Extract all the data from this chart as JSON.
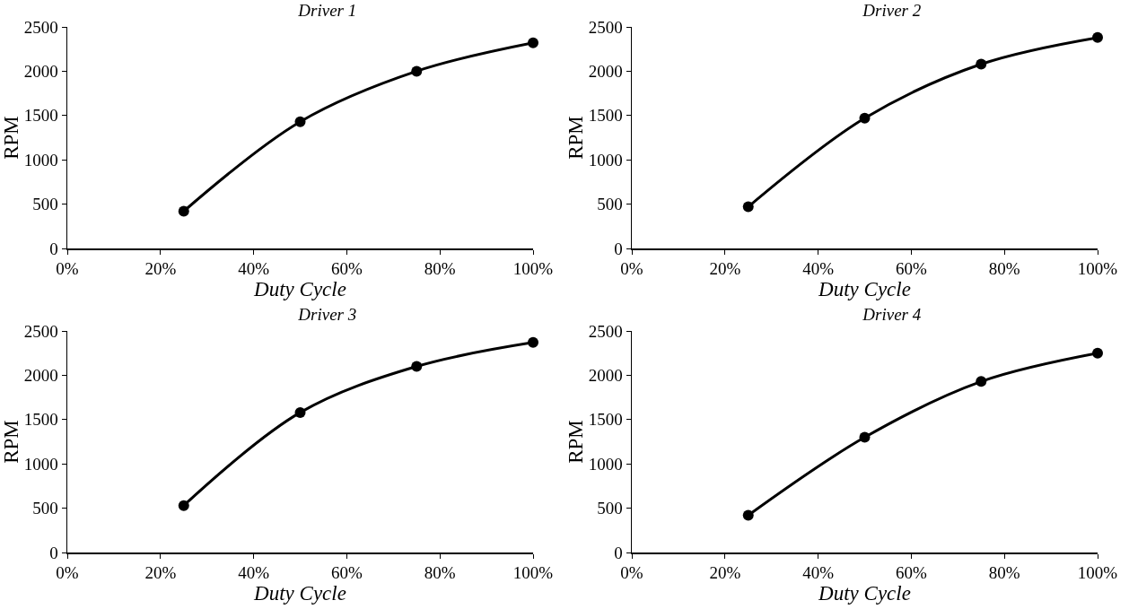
{
  "chart_data": [
    {
      "type": "line",
      "title": "Driver 1",
      "xlabel": "Duty Cycle",
      "ylabel": "RPM",
      "x": [
        25,
        50,
        75,
        100
      ],
      "series": [
        {
          "color": "#000000",
          "values": [
            420,
            1430,
            2000,
            2320
          ]
        }
      ],
      "xlim": [
        0,
        100
      ],
      "xticks": [
        {
          "value": 0,
          "label": "0%"
        },
        {
          "value": 20,
          "label": "20%"
        },
        {
          "value": 40,
          "label": "40%"
        },
        {
          "value": 60,
          "label": "60%"
        },
        {
          "value": 80,
          "label": "80%"
        },
        {
          "value": 100,
          "label": "100%"
        }
      ],
      "ylim": [
        0,
        2500
      ],
      "yticks": [
        0,
        500,
        1000,
        1500,
        2000,
        2500
      ],
      "grid": false,
      "marker": "circle",
      "line_style": "solid"
    },
    {
      "type": "line",
      "title": "Driver 2",
      "xlabel": "Duty Cycle",
      "ylabel": "RPM",
      "x": [
        25,
        50,
        75,
        100
      ],
      "series": [
        {
          "color": "#000000",
          "values": [
            470,
            1470,
            2080,
            2380
          ]
        }
      ],
      "xlim": [
        0,
        100
      ],
      "xticks": [
        {
          "value": 0,
          "label": "0%"
        },
        {
          "value": 20,
          "label": "20%"
        },
        {
          "value": 40,
          "label": "40%"
        },
        {
          "value": 60,
          "label": "60%"
        },
        {
          "value": 80,
          "label": "80%"
        },
        {
          "value": 100,
          "label": "100%"
        }
      ],
      "ylim": [
        0,
        2500
      ],
      "yticks": [
        0,
        500,
        1000,
        1500,
        2000,
        2500
      ],
      "grid": false,
      "marker": "circle",
      "line_style": "solid"
    },
    {
      "type": "line",
      "title": "Driver 3",
      "xlabel": "Duty Cycle",
      "ylabel": "RPM",
      "x": [
        25,
        50,
        75,
        100
      ],
      "series": [
        {
          "color": "#000000",
          "values": [
            530,
            1580,
            2100,
            2370
          ]
        }
      ],
      "xlim": [
        0,
        100
      ],
      "xticks": [
        {
          "value": 0,
          "label": "0%"
        },
        {
          "value": 20,
          "label": "20%"
        },
        {
          "value": 40,
          "label": "40%"
        },
        {
          "value": 60,
          "label": "60%"
        },
        {
          "value": 80,
          "label": "80%"
        },
        {
          "value": 100,
          "label": "100%"
        }
      ],
      "ylim": [
        0,
        2500
      ],
      "yticks": [
        0,
        500,
        1000,
        1500,
        2000,
        2500
      ],
      "grid": false,
      "marker": "circle",
      "line_style": "solid"
    },
    {
      "type": "line",
      "title": "Driver 4",
      "xlabel": "Duty Cycle",
      "ylabel": "RPM",
      "x": [
        25,
        50,
        75,
        100
      ],
      "series": [
        {
          "color": "#000000",
          "values": [
            420,
            1300,
            1930,
            2250
          ]
        }
      ],
      "xlim": [
        0,
        100
      ],
      "xticks": [
        {
          "value": 0,
          "label": "0%"
        },
        {
          "value": 20,
          "label": "20%"
        },
        {
          "value": 40,
          "label": "40%"
        },
        {
          "value": 60,
          "label": "60%"
        },
        {
          "value": 80,
          "label": "80%"
        },
        {
          "value": 100,
          "label": "100%"
        }
      ],
      "ylim": [
        0,
        2500
      ],
      "yticks": [
        0,
        500,
        1000,
        1500,
        2000,
        2500
      ],
      "grid": false,
      "marker": "circle",
      "line_style": "solid"
    }
  ]
}
